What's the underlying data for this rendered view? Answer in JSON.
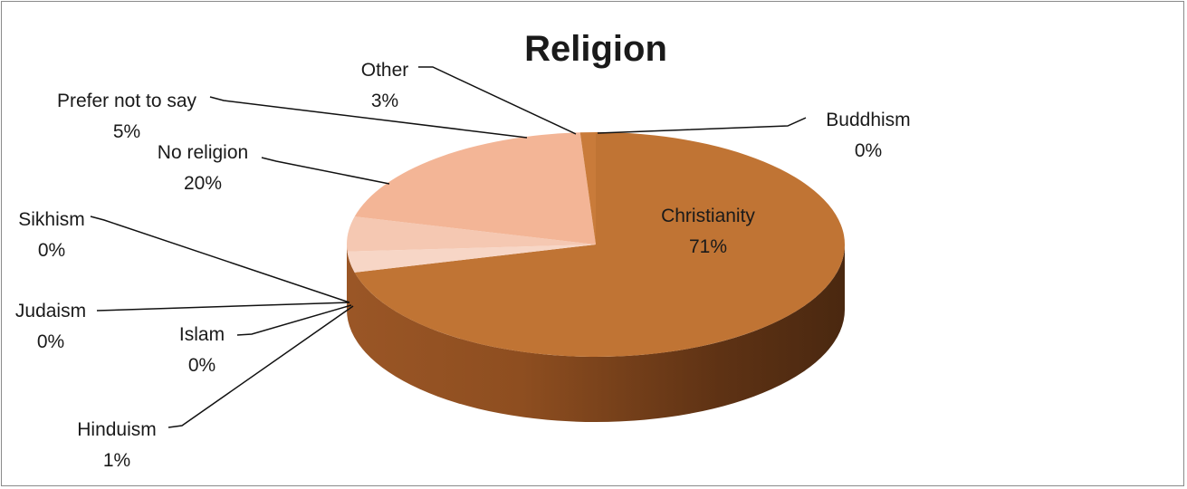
{
  "chart_data": {
    "type": "pie",
    "title": "Religion",
    "style": "3d-exploded-none",
    "categories": [
      "Christianity",
      "Buddhism",
      "Other",
      "Prefer not to say",
      "No religion",
      "Sikhism",
      "Judaism",
      "Islam",
      "Hinduism"
    ],
    "values": [
      71,
      0,
      3,
      5,
      20,
      0,
      0,
      0,
      1
    ],
    "value_labels": [
      "71%",
      "0%",
      "3%",
      "5%",
      "20%",
      "0%",
      "0%",
      "0%",
      "1%"
    ],
    "colors": [
      "#C07434",
      "#F8E0D4",
      "#F7D6C6",
      "#F5C8B2",
      "#F3B596",
      "#EFA277",
      "#E99560",
      "#D98848",
      "#C97B3A"
    ],
    "legend": "none"
  }
}
